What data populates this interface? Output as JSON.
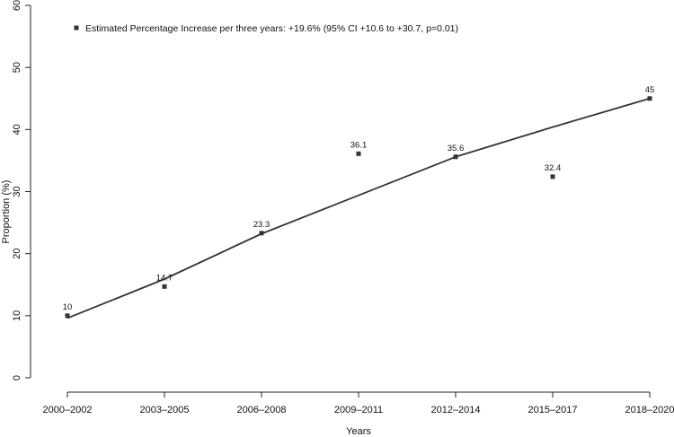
{
  "chart_data": {
    "type": "scatter",
    "title": "",
    "xlabel": "Years",
    "ylabel": "Proportion (%)",
    "categories": [
      "2000–2002",
      "2003–2005",
      "2006–2008",
      "2009–2011",
      "2012–2014",
      "2015–2017",
      "2018–2020"
    ],
    "values": [
      10,
      14.7,
      23.3,
      36.1,
      35.6,
      32.4,
      45
    ],
    "data_labels": [
      "10",
      "14.7",
      "23.3",
      "36.1",
      "35.6",
      "32.4",
      "45"
    ],
    "fit_line": {
      "x": [
        "2000–2002",
        "2003–2005",
        "2006–2008",
        "2009–2011",
        "2012–2014",
        "2015–2017",
        "2018–2020"
      ],
      "y": [
        9.6,
        15.9,
        23.2,
        29.4,
        35.6,
        40.4,
        45
      ]
    },
    "ylim": [
      0,
      60
    ],
    "yticks": [
      "0",
      "10",
      "20",
      "30",
      "40",
      "50",
      "60"
    ],
    "grid": false,
    "legend": {
      "position": "top-left",
      "entries": [
        "Estimated Percentage Increase per three years: +19.6% (95% CI +10.6 to +30.7, p=0.01)"
      ]
    },
    "colors": {
      "marker": "#333333",
      "line": "#333333",
      "axis": "#222222"
    }
  }
}
